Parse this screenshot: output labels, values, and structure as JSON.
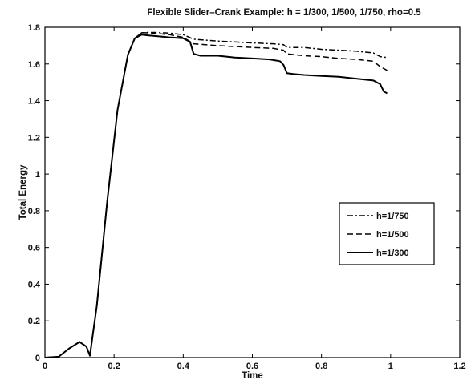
{
  "chart_data": {
    "type": "line",
    "title": "Flexible Slider–Crank Example: h = 1/300, 1/500, 1/750, rho=0.5",
    "xlabel": "Time",
    "ylabel": "Total Energy",
    "xlim": [
      0,
      1.2
    ],
    "ylim": [
      0,
      1.8
    ],
    "xticks": [
      "0",
      "0.2",
      "0.4",
      "0.6",
      "0.8",
      "1",
      "1.2"
    ],
    "yticks": [
      "0",
      "0.2",
      "0.4",
      "0.6",
      "0.8",
      "1",
      "1.2",
      "1.4",
      "1.6",
      "1.8"
    ],
    "grid": false,
    "legend_position": "center-right",
    "series": [
      {
        "name": "h=1/750",
        "style": "dashdot",
        "x": [
          0,
          0.04,
          0.07,
          0.1,
          0.12,
          0.13,
          0.15,
          0.18,
          0.21,
          0.24,
          0.26,
          0.28,
          0.3,
          0.33,
          0.36,
          0.4,
          0.43,
          0.5,
          0.6,
          0.66,
          0.69,
          0.7,
          0.75,
          0.8,
          0.85,
          0.9,
          0.95,
          0.97,
          0.99
        ],
        "y": [
          0,
          0.005,
          0.05,
          0.085,
          0.06,
          0.01,
          0.28,
          0.85,
          1.35,
          1.65,
          1.74,
          1.77,
          1.772,
          1.771,
          1.768,
          1.76,
          1.735,
          1.725,
          1.715,
          1.71,
          1.705,
          1.69,
          1.69,
          1.68,
          1.675,
          1.67,
          1.66,
          1.64,
          1.635
        ]
      },
      {
        "name": "h=1/500",
        "style": "dashed",
        "x": [
          0,
          0.04,
          0.07,
          0.1,
          0.12,
          0.13,
          0.15,
          0.18,
          0.21,
          0.24,
          0.26,
          0.28,
          0.3,
          0.33,
          0.36,
          0.4,
          0.43,
          0.5,
          0.6,
          0.66,
          0.69,
          0.7,
          0.75,
          0.8,
          0.85,
          0.9,
          0.95,
          0.97,
          0.99
        ],
        "y": [
          0,
          0.005,
          0.05,
          0.085,
          0.06,
          0.01,
          0.28,
          0.85,
          1.35,
          1.65,
          1.74,
          1.77,
          1.77,
          1.765,
          1.76,
          1.745,
          1.71,
          1.7,
          1.69,
          1.685,
          1.675,
          1.655,
          1.645,
          1.64,
          1.63,
          1.625,
          1.615,
          1.585,
          1.565
        ]
      },
      {
        "name": "h=1/300",
        "style": "solid",
        "x": [
          0,
          0.04,
          0.07,
          0.1,
          0.12,
          0.13,
          0.15,
          0.18,
          0.21,
          0.24,
          0.26,
          0.28,
          0.3,
          0.33,
          0.36,
          0.4,
          0.42,
          0.43,
          0.45,
          0.5,
          0.55,
          0.6,
          0.65,
          0.68,
          0.69,
          0.7,
          0.72,
          0.75,
          0.8,
          0.85,
          0.9,
          0.95,
          0.97,
          0.98,
          0.99
        ],
        "y": [
          0,
          0.005,
          0.05,
          0.085,
          0.06,
          0.01,
          0.28,
          0.85,
          1.35,
          1.65,
          1.74,
          1.76,
          1.755,
          1.75,
          1.745,
          1.74,
          1.72,
          1.655,
          1.645,
          1.645,
          1.635,
          1.63,
          1.625,
          1.615,
          1.595,
          1.55,
          1.545,
          1.54,
          1.535,
          1.53,
          1.52,
          1.51,
          1.49,
          1.45,
          1.44
        ]
      }
    ]
  }
}
